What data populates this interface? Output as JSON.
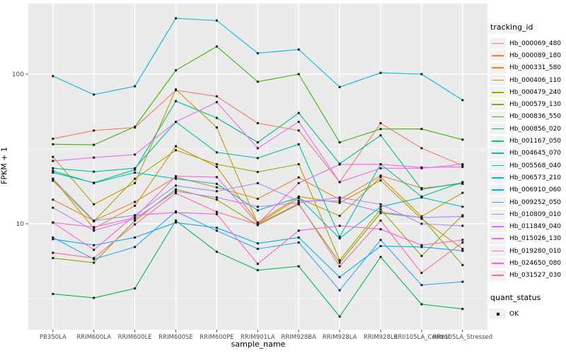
{
  "y_axis": {
    "title": "FPKM + 1",
    "tick_labels": [
      "100",
      "10"
    ],
    "tick_values": [
      100,
      10
    ],
    "minor_values": [
      31.62,
      3.162
    ],
    "scale": "log10",
    "text_color": "#4D4D4D"
  },
  "x_axis": {
    "title": "sample_name",
    "text_color": "#4D4D4D"
  },
  "panel": {
    "background": "#EBEBEB",
    "grid_color": "#FFFFFF",
    "tick_color": "#333333",
    "point_color": "#1a1a1a"
  },
  "legend": {
    "tracking_title": "tracking_id",
    "quant_title": "quant_status",
    "quant_items": [
      {
        "label": "OK",
        "shape": "black-square"
      }
    ]
  },
  "chart_data": {
    "type": "line",
    "xlabel": "sample_name",
    "ylabel": "FPKM + 1",
    "yscale": "log10",
    "ylim": [
      1.96,
      290
    ],
    "grid": true,
    "legend_position": "right",
    "categories": [
      "PB350LA",
      "RRIM600LA",
      "RRIM600LE",
      "RRIM600SE",
      "RRIM600PE",
      "RRIM901LA",
      "RRIM928BA",
      "RRIM928LA",
      "RRIM928LE",
      "RRII105LA_Control",
      "RRII105LA_Stressed"
    ],
    "series": [
      {
        "name": "Hb_000069_480",
        "color": "#F8766D",
        "values": [
          37,
          42,
          44,
          78,
          71,
          47,
          42,
          19,
          47,
          32,
          24.5
        ]
      },
      {
        "name": "Hb_000089_180",
        "color": "#EA8331",
        "values": [
          14.5,
          10.5,
          14,
          20.5,
          17.5,
          14.7,
          20.4,
          14.5,
          21,
          17.3,
          18.5
        ]
      },
      {
        "name": "Hb_000331_580",
        "color": "#D89000",
        "values": [
          20,
          9.3,
          13.2,
          33,
          24,
          10.2,
          15.2,
          13.8,
          19.5,
          10.8,
          6.8
        ]
      },
      {
        "name": "Hb_000406_110",
        "color": "#C49A00",
        "values": [
          28,
          13.5,
          18.7,
          79,
          44,
          10,
          14.8,
          11.3,
          20.5,
          11.2,
          16.1
        ]
      },
      {
        "name": "Hb_000479_240",
        "color": "#A3A500",
        "values": [
          19.4,
          10.4,
          20,
          31,
          25,
          22.2,
          25,
          5.7,
          12.5,
          6.1,
          11.4
        ]
      },
      {
        "name": "Hb_000579_130",
        "color": "#7CAE00",
        "values": [
          5.9,
          5.5,
          10.5,
          17,
          14.5,
          9.8,
          13.5,
          5.5,
          11.8,
          11,
          5.3
        ]
      },
      {
        "name": "Hb_000836_550",
        "color": "#39B600",
        "values": [
          34,
          33.7,
          44.5,
          106,
          153,
          89,
          100,
          35,
          43,
          43,
          36.5
        ]
      },
      {
        "name": "Hb_000856_020",
        "color": "#00BB4E",
        "values": [
          3.4,
          3.2,
          3.7,
          10.5,
          6.5,
          4.9,
          5.2,
          2.4,
          6,
          2.9,
          2.7
        ]
      },
      {
        "name": "Hb_001167_050",
        "color": "#00BF7D",
        "values": [
          22,
          18.8,
          23,
          66,
          51,
          35,
          55,
          25.2,
          39,
          17,
          18.8
        ]
      },
      {
        "name": "Hb_004645_070",
        "color": "#00C1A3",
        "values": [
          23.5,
          22.3,
          23.5,
          48,
          30,
          27.5,
          34,
          8.2,
          25,
          15.2,
          19
        ]
      },
      {
        "name": "Hb_005568_040",
        "color": "#00BFC4",
        "values": [
          22.6,
          18.7,
          22,
          20,
          18.5,
          12.3,
          15,
          8,
          13,
          15,
          13
        ]
      },
      {
        "name": "Hb_006573_210",
        "color": "#00BAE0",
        "values": [
          97,
          73,
          83,
          236,
          228,
          138,
          146,
          82,
          102,
          100,
          67
        ]
      },
      {
        "name": "Hb_006910_060",
        "color": "#00B0F6",
        "values": [
          7.9,
          7.2,
          8.1,
          10.2,
          9.4,
          7.4,
          8.1,
          4.4,
          7.1,
          7,
          6.6
        ]
      },
      {
        "name": "Hb_009252_050",
        "color": "#35A2FF",
        "values": [
          8.1,
          5.8,
          7,
          12.1,
          9,
          6.8,
          7.5,
          3.6,
          7.8,
          3.9,
          4.1
        ]
      },
      {
        "name": "Hb_010809_010",
        "color": "#9590FF",
        "values": [
          20,
          10.5,
          11.4,
          18,
          16.5,
          18.7,
          14.2,
          14.2,
          12,
          11,
          11.2
        ]
      },
      {
        "name": "Hb_011849_040",
        "color": "#C77CFF",
        "values": [
          12.8,
          9,
          10.8,
          16.5,
          15,
          13,
          13.8,
          15,
          13.5,
          10,
          9.7
        ]
      },
      {
        "name": "Hb_015026_130",
        "color": "#E76BF3",
        "values": [
          26.3,
          27.7,
          29,
          48,
          65,
          32,
          48,
          19,
          23.5,
          23.5,
          25
        ]
      },
      {
        "name": "Hb_019280_010",
        "color": "#FA62DB",
        "values": [
          10.2,
          9.5,
          11,
          20.8,
          20.5,
          10,
          18.7,
          24.9,
          25,
          23.8,
          24
        ]
      },
      {
        "name": "Hb_024650_080",
        "color": "#FF61CC",
        "values": [
          10.2,
          6.7,
          11.4,
          11.9,
          11.6,
          5.4,
          9,
          9.7,
          9.2,
          7.2,
          7.8
        ]
      },
      {
        "name": "Hb_031527_030",
        "color": "#FF67A4",
        "values": [
          6.4,
          5.9,
          9.9,
          16,
          12,
          9.9,
          13.7,
          5.2,
          10.5,
          4.7,
          7.5
        ]
      }
    ]
  }
}
